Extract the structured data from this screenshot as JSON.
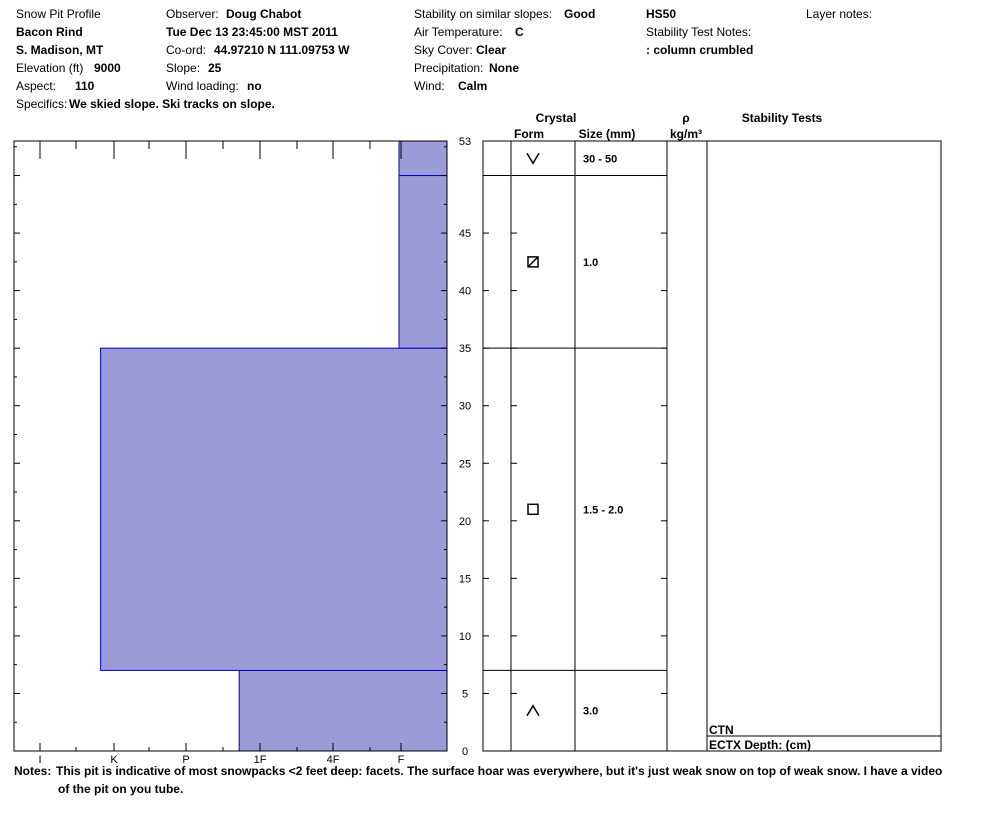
{
  "header": {
    "title": "Snow Pit Profile",
    "pit_name": "Bacon Rind",
    "location": "S. Madison, MT",
    "elevation_label": "Elevation (ft)",
    "elevation": "9000",
    "aspect_label": "Aspect:",
    "aspect": "110",
    "specifics_label": "Specifics:",
    "specifics": "We skied slope. Ski tracks on slope.",
    "observer_label": "Observer:",
    "observer": "Doug Chabot",
    "datetime": "Tue Dec 13 23:45:00 MST 2011",
    "coord_label": "Co-ord:",
    "coord": "44.97210 N 111.09753 W",
    "slope_label": "Slope:",
    "slope": "25",
    "wind_loading_label": "Wind loading:",
    "wind_loading": "no",
    "stability_label": "Stability on similar slopes:",
    "stability": "Good",
    "air_temp_label": "Air Temperature:",
    "air_temp": "C",
    "sky_label": "Sky Cover:",
    "sky": "Clear",
    "precip_label": "Precipitation:",
    "precip": "None",
    "wind_label": "Wind:",
    "wind": "Calm",
    "hs": "HS50",
    "stability_notes_label": "Stability Test Notes:",
    "stability_notes": ": column crumbled",
    "layer_notes_label": "Layer notes:"
  },
  "notes": {
    "label": "Notes:",
    "line1": "This pit is indicative of most snowpacks <2 feet deep: facets.  The surface hoar was everywhere, but it's just weak snow on top of weak snow.  I have a video",
    "line2": "of the pit on you tube."
  },
  "colors": {
    "layer_fill": "#9b9bd7",
    "layer_edge": "#0000cc"
  },
  "table_headers": {
    "crystal": "Crystal",
    "form": "Form",
    "size": "Size (mm)",
    "rho": "ρ",
    "density_unit": "kg/m³",
    "stability_tests": "Stability Tests"
  },
  "stability_tests": {
    "line1": "CTN",
    "line2": "ECTX   Depth: (cm)"
  },
  "chart_data": {
    "type": "bar",
    "y_range": [
      0,
      53
    ],
    "y_ticks": [
      0,
      5,
      10,
      15,
      20,
      25,
      30,
      35,
      40,
      45,
      53
    ],
    "hardness_scale": [
      "I",
      "K",
      "P",
      "1F",
      "4F",
      "F"
    ],
    "layers": [
      {
        "bottom": 0,
        "top": 7,
        "hardness": 0.48,
        "form": "depth-hoar",
        "size": "3.0"
      },
      {
        "bottom": 7,
        "top": 35,
        "hardness": 0.8,
        "form": "faceted",
        "size": "1.5 - 2.0"
      },
      {
        "bottom": 35,
        "top": 50,
        "hardness": 0.0,
        "form": "mixed-faceted",
        "size": "1.0"
      },
      {
        "bottom": 50,
        "top": 53,
        "hardness": 0.0,
        "form": "surface-hoar",
        "size": "30 - 50"
      }
    ]
  }
}
